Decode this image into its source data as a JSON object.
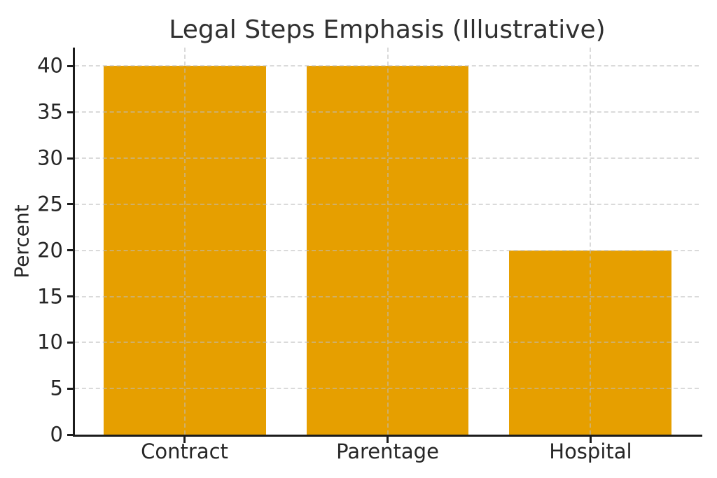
{
  "chart_data": {
    "type": "bar",
    "title": "Legal Steps Emphasis (Illustrative)",
    "ylabel": "Percent",
    "xlabel": "",
    "categories": [
      "Contract",
      "Parentage",
      "Hospital"
    ],
    "values": [
      40,
      40,
      20
    ],
    "yticks": [
      0,
      5,
      10,
      15,
      20,
      25,
      30,
      35,
      40
    ],
    "ylim": [
      0,
      42
    ],
    "grid": "dashed, horizontal at every y tick and vertical at each bar center",
    "legend": "none",
    "colors": {
      "bar": "#E69F00",
      "axis": "#1c1c1c",
      "grid": "#bdbdbd",
      "text": "#262626",
      "title": "#303030",
      "background": "#ffffff"
    }
  }
}
